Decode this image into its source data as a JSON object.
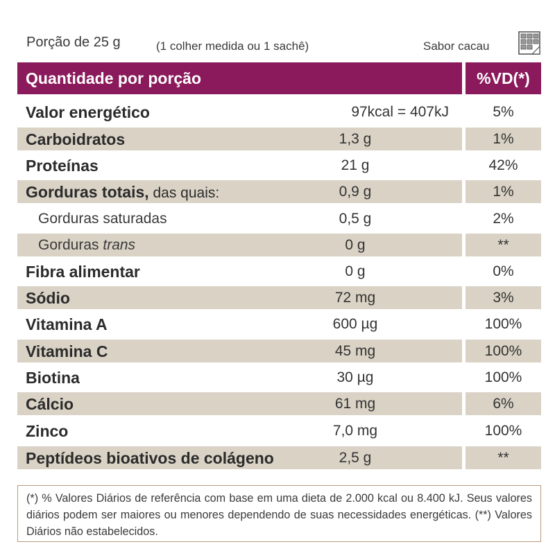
{
  "portion": {
    "label": "Porção de 25 g",
    "note": "(1 colher medida ou 1 sachê)"
  },
  "flavor": {
    "label": "Sabor cacau",
    "icon": "chocolate-bar-icon"
  },
  "header": {
    "title": "Quantidade por porção",
    "vd": "%VD(*)"
  },
  "rows": [
    {
      "name": "Valor energético",
      "amount": "97kcal = 407kJ",
      "vd": "5%"
    },
    {
      "name": "Carboidratos",
      "amount": "1,3 g",
      "vd": "1%"
    },
    {
      "name": "Proteínas",
      "amount": "21 g",
      "vd": "42%"
    },
    {
      "name": "Gorduras totais,",
      "extra": " das quais:",
      "amount": "0,9 g",
      "vd": "1%"
    },
    {
      "name": "Gorduras saturadas",
      "amount": "0,5 g",
      "vd": "2%"
    },
    {
      "name": "Gorduras ",
      "italic": "trans",
      "amount": "0 g",
      "vd": "**"
    },
    {
      "name": "Fibra alimentar",
      "amount": "0 g",
      "vd": "0%"
    },
    {
      "name": "Sódio",
      "amount": "72 mg",
      "vd": "3%"
    },
    {
      "name": "Vitamina A",
      "amount": "600 µg",
      "vd": "100%"
    },
    {
      "name": "Vitamina C",
      "amount": "45 mg",
      "vd": "100%"
    },
    {
      "name": "Biotina",
      "amount": "30 µg",
      "vd": "100%"
    },
    {
      "name": "Cálcio",
      "amount": "61 mg",
      "vd": "6%"
    },
    {
      "name": "Zinco",
      "amount": "7,0 mg",
      "vd": "100%"
    },
    {
      "name": "Peptídeos bioativos de colágeno",
      "amount": "2,5 g",
      "vd": "**"
    }
  ],
  "footnote": "(*) % Valores Diários de referência com base em uma dieta de 2.000 kcal ou 8.400 kJ. Seus valores diários podem ser maiores ou menores dependendo de suas necessidades energéticas. (**) Valores Diários não estabelecidos.",
  "colors": {
    "header": "#8a1a5b",
    "shade": "#d9d2c5",
    "border": "#b89a7a"
  }
}
